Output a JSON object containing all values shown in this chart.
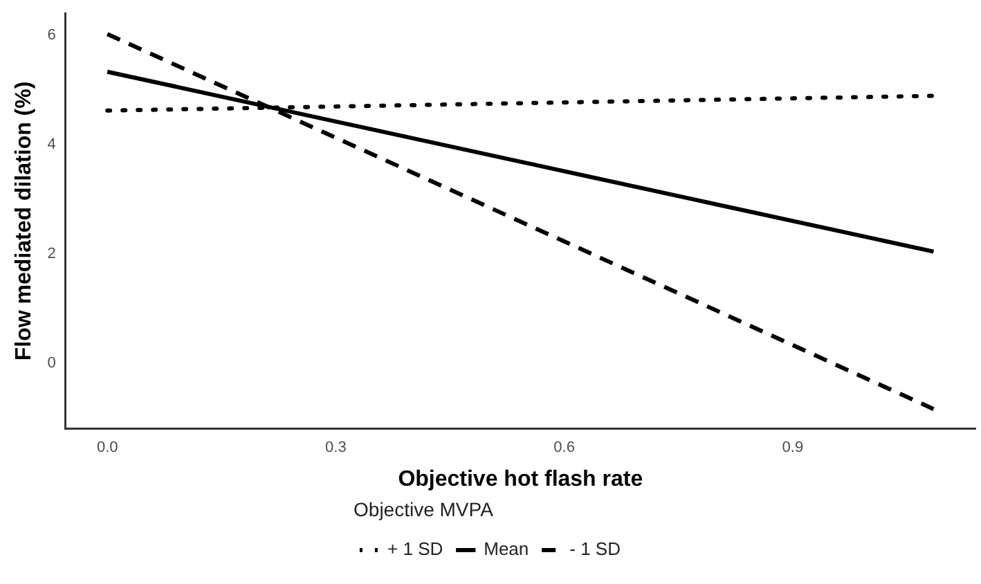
{
  "chart_data": {
    "type": "line",
    "xlabel": "Objective hot flash rate",
    "ylabel": "Flow mediated dilation (%)",
    "legend_title": "Objective MVPA",
    "legend": "bottom",
    "grid": false,
    "marker": "none",
    "x": [
      0,
      1.085
    ],
    "series": [
      {
        "name": "+ 1 SD",
        "color": "#000000",
        "line_style": "dotted",
        "values": [
          4.62,
          4.89
        ]
      },
      {
        "name": "Mean",
        "color": "#000000",
        "line_style": "solid",
        "values": [
          5.33,
          2.04
        ]
      },
      {
        "name": "- 1 SD",
        "color": "#000000",
        "line_style": "dashed",
        "values": [
          6.02,
          -0.84
        ]
      }
    ],
    "xlim": [
      -0.055,
      1.14
    ],
    "xticks": [
      {
        "value": 0,
        "label": "0.0"
      },
      0.3,
      0.6,
      0.9
    ],
    "ylim": [
      -1.2,
      6.4
    ],
    "yticks": [
      0,
      2,
      4,
      6
    ]
  }
}
